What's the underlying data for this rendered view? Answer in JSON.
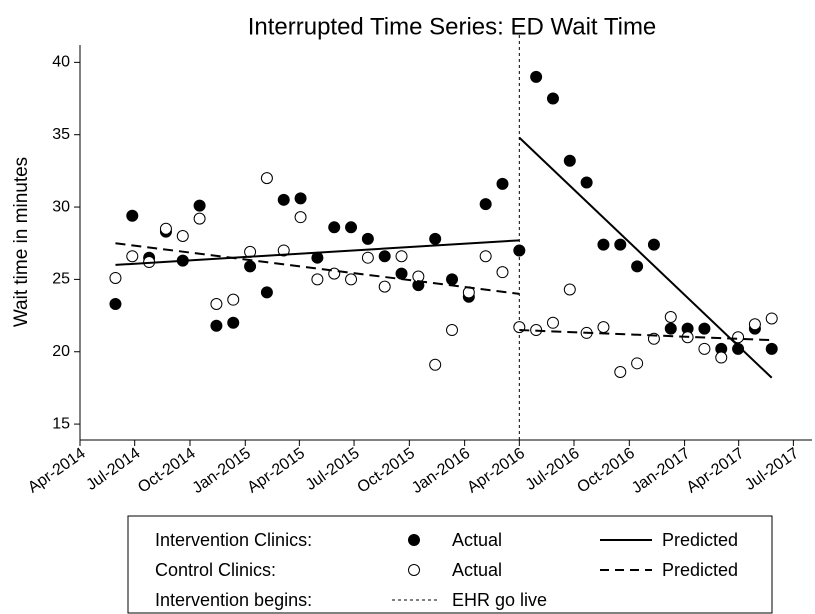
{
  "chart_data": {
    "type": "scatter",
    "title": "Interrupted Time Series: ED Wait Time",
    "ylabel": "Wait time in minutes",
    "x": [
      "2014-05-30",
      "2014-06-27",
      "2014-07-25",
      "2014-08-22",
      "2014-09-19",
      "2014-10-17",
      "2014-11-14",
      "2014-12-12",
      "2015-01-09",
      "2015-02-06",
      "2015-03-06",
      "2015-04-03",
      "2015-05-01",
      "2015-05-29",
      "2015-06-26",
      "2015-07-24",
      "2015-08-21",
      "2015-09-18",
      "2015-10-16",
      "2015-11-13",
      "2015-12-11",
      "2016-01-08",
      "2016-02-05",
      "2016-03-04",
      "2016-04-01",
      "2016-04-29",
      "2016-05-27",
      "2016-06-24",
      "2016-07-22",
      "2016-08-19",
      "2016-09-16",
      "2016-10-14",
      "2016-11-11",
      "2016-12-09",
      "2017-01-06",
      "2017-02-03",
      "2017-03-03",
      "2017-03-31",
      "2017-04-28",
      "2017-05-26"
    ],
    "xlim": [
      "2014-04-01",
      "2017-08-01"
    ],
    "xticks": [
      {
        "value": "2014-04-01",
        "label": "Apr-2014"
      },
      {
        "value": "2014-07-01",
        "label": "Jul-2014"
      },
      {
        "value": "2014-10-01",
        "label": "Oct-2014"
      },
      {
        "value": "2015-01-01",
        "label": "Jan-2015"
      },
      {
        "value": "2015-04-01",
        "label": "Apr-2015"
      },
      {
        "value": "2015-07-01",
        "label": "Jul-2015"
      },
      {
        "value": "2015-10-01",
        "label": "Oct-2015"
      },
      {
        "value": "2016-01-01",
        "label": "Jan-2016"
      },
      {
        "value": "2016-04-01",
        "label": "Apr-2016"
      },
      {
        "value": "2016-07-01",
        "label": "Jul-2016"
      },
      {
        "value": "2016-10-01",
        "label": "Oct-2016"
      },
      {
        "value": "2017-01-01",
        "label": "Jan-2017"
      },
      {
        "value": "2017-04-01",
        "label": "Apr-2017"
      },
      {
        "value": "2017-07-01",
        "label": "Jul-2017"
      }
    ],
    "ylim": [
      13.9,
      41.2
    ],
    "yticks": [
      15,
      20,
      25,
      30,
      35,
      40
    ],
    "groups": [
      "Intervention Clinics:",
      "Control Clinics:",
      "Intervention begins:"
    ],
    "series": [
      {
        "name": "Actual",
        "group": 0,
        "style": "filled",
        "color": "#000000",
        "values": [
          23.3,
          29.4,
          26.5,
          28.3,
          26.3,
          30.1,
          21.8,
          22.0,
          25.9,
          24.1,
          30.5,
          30.6,
          26.5,
          28.6,
          28.6,
          27.8,
          26.6,
          25.4,
          24.6,
          27.8,
          25.0,
          23.8,
          30.2,
          31.6,
          27.0,
          39.0,
          37.5,
          33.2,
          31.7,
          27.4,
          27.4,
          25.9,
          27.4,
          21.6,
          21.6,
          21.6,
          20.2,
          20.2,
          21.6,
          20.2
        ]
      },
      {
        "name": "Actual",
        "group": 1,
        "style": "open",
        "color": "#000000",
        "values": [
          25.1,
          26.6,
          26.2,
          28.5,
          28.0,
          29.2,
          23.3,
          23.6,
          26.9,
          32.0,
          27.0,
          29.3,
          25.0,
          25.4,
          25.0,
          26.5,
          24.5,
          26.6,
          25.2,
          19.1,
          21.5,
          24.1,
          26.6,
          25.5,
          21.7,
          21.5,
          22.0,
          24.3,
          21.3,
          21.7,
          18.6,
          19.2,
          20.9,
          22.4,
          21.0,
          20.2,
          19.6,
          21.0,
          21.9,
          22.3
        ]
      },
      {
        "name": "Predicted",
        "group": 0,
        "style": "solid",
        "color": "#000000",
        "x": [
          "2014-05-30",
          "2016-04-01",
          null,
          "2016-04-01",
          "2017-05-26"
        ],
        "values": [
          26.0,
          27.7,
          null,
          34.8,
          18.2
        ]
      },
      {
        "name": "Predicted",
        "group": 1,
        "style": "dashed",
        "color": "#000000",
        "x": [
          "2014-05-30",
          "2016-04-01",
          null,
          "2016-04-01",
          "2017-05-26"
        ],
        "values": [
          27.5,
          24.0,
          null,
          21.5,
          20.8
        ]
      }
    ],
    "event": {
      "x": "2016-04-01",
      "label": "EHR go live",
      "group": 2
    }
  }
}
